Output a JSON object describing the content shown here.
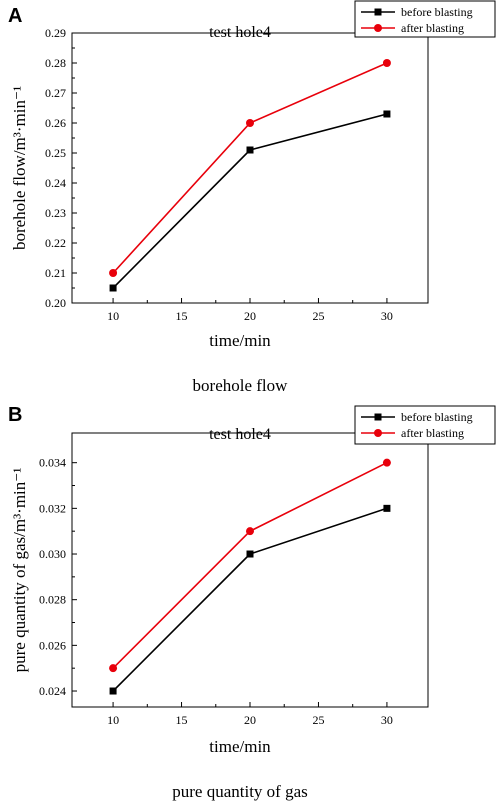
{
  "chart_data": [
    {
      "type": "line",
      "panel_label": "A",
      "title": "test hole4",
      "xlabel": "time/min",
      "ylabel": "borehole flow/m³·min⁻¹",
      "caption": "borehole flow",
      "x": [
        10,
        20,
        30
      ],
      "xlim": [
        7,
        33
      ],
      "ylim": [
        0.2,
        0.29
      ],
      "xticks": [
        "10",
        "15",
        "20",
        "25",
        "30"
      ],
      "yticks": [
        "0.20",
        "0.21",
        "0.22",
        "0.23",
        "0.24",
        "0.25",
        "0.26",
        "0.27",
        "0.28",
        "0.29"
      ],
      "grid": false,
      "legend_position": "top-right",
      "series": [
        {
          "name": "before blasting",
          "values": [
            0.205,
            0.251,
            0.263
          ],
          "color": "#000000",
          "marker": "square"
        },
        {
          "name": "after blasting",
          "values": [
            0.21,
            0.26,
            0.28
          ],
          "color": "#e8000b",
          "marker": "circle"
        }
      ]
    },
    {
      "type": "line",
      "panel_label": "B",
      "title": "test hole4",
      "xlabel": "time/min",
      "ylabel": "pure quantity of gas/m³·min⁻¹",
      "caption": "pure quantity of gas",
      "x": [
        10,
        20,
        30
      ],
      "xlim": [
        7,
        33
      ],
      "ylim": [
        0.0233,
        0.0353
      ],
      "xticks": [
        "10",
        "15",
        "20",
        "25",
        "30"
      ],
      "yticks": [
        "0.024",
        "0.026",
        "0.028",
        "0.030",
        "0.032",
        "0.034"
      ],
      "grid": false,
      "legend_position": "top-right",
      "series": [
        {
          "name": "before blasting",
          "values": [
            0.024,
            0.03,
            0.032
          ],
          "color": "#000000",
          "marker": "square"
        },
        {
          "name": "after blasting",
          "values": [
            0.025,
            0.031,
            0.034
          ],
          "color": "#e8000b",
          "marker": "circle"
        }
      ]
    }
  ]
}
